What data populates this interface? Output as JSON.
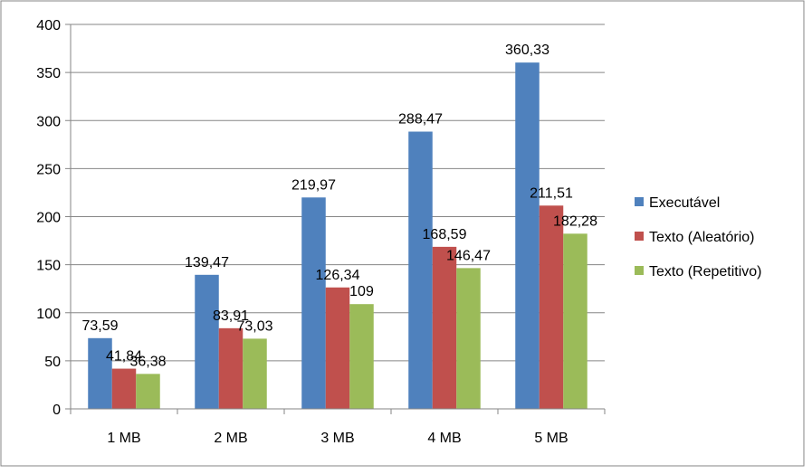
{
  "chart_data": {
    "type": "bar",
    "categories": [
      "1 MB",
      "2 MB",
      "3 MB",
      "4 MB",
      "5 MB"
    ],
    "series": [
      {
        "name": "Executável",
        "color": "#4f81bd",
        "values": [
          73.59,
          139.47,
          219.97,
          288.47,
          360.33
        ],
        "labels": [
          "73,59",
          "139,47",
          "219,97",
          "288,47",
          "360,33"
        ]
      },
      {
        "name": "Texto (Aleatório)",
        "color": "#c0504d",
        "values": [
          41.84,
          83.91,
          126.34,
          168.59,
          211.51
        ],
        "labels": [
          "41,84",
          "83,91",
          "126,34",
          "168,59",
          "211,51"
        ]
      },
      {
        "name": "Texto (Repetitivo)",
        "color": "#9bbb59",
        "values": [
          36.38,
          73.03,
          109,
          146.47,
          182.28
        ],
        "labels": [
          "36,38",
          "73,03",
          "109",
          "146,47",
          "182,28"
        ]
      }
    ],
    "ylim": [
      0,
      400
    ],
    "yticks": [
      0,
      50,
      100,
      150,
      200,
      250,
      300,
      350,
      400
    ],
    "grid": true,
    "legend": "right",
    "title": "",
    "xlabel": "",
    "ylabel": ""
  }
}
